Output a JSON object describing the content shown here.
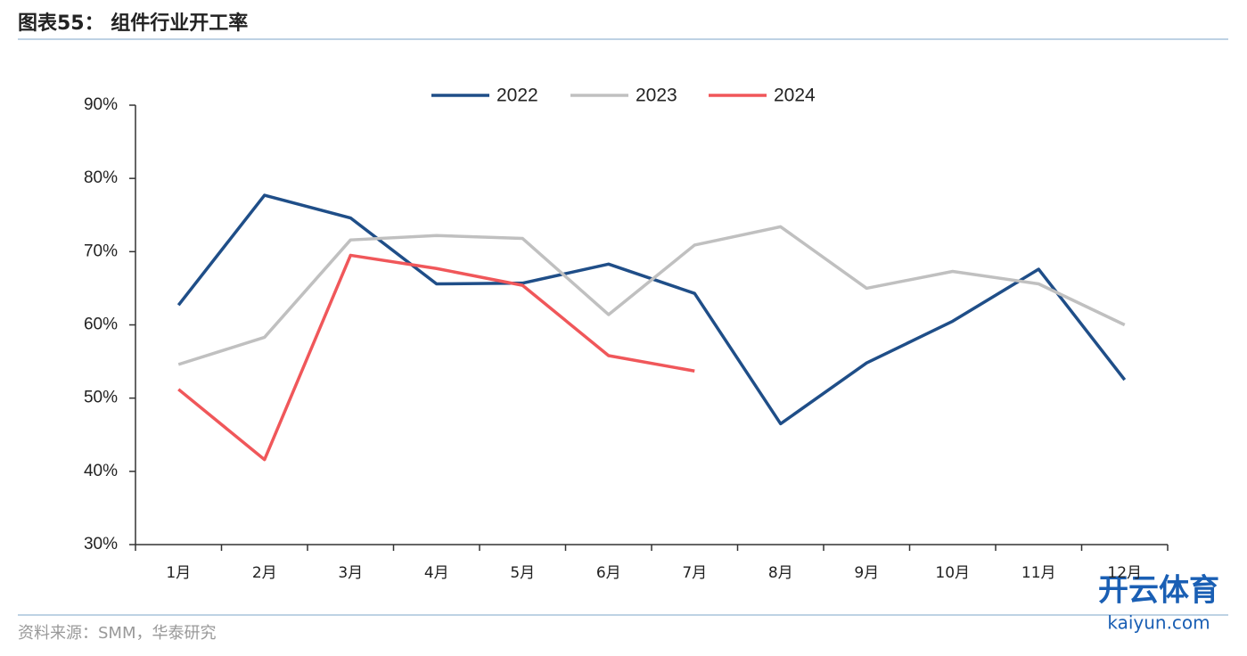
{
  "chart_data": {
    "type": "line",
    "title": "图表55： 组件行业开工率",
    "source": "资料来源：SMM，华泰研究",
    "watermark": [
      "开云体育",
      "kaiyun.com"
    ],
    "categories": [
      "1月",
      "2月",
      "3月",
      "4月",
      "5月",
      "6月",
      "7月",
      "8月",
      "9月",
      "10月",
      "11月",
      "12月"
    ],
    "series": [
      {
        "name": "2022",
        "color": "#1f4e88",
        "values": [
          62.7,
          77.7,
          74.6,
          65.6,
          65.7,
          68.3,
          64.3,
          46.5,
          54.8,
          60.5,
          67.6,
          52.5
        ]
      },
      {
        "name": "2023",
        "color": "#c0c0c0",
        "values": [
          54.6,
          58.3,
          71.6,
          72.2,
          71.8,
          61.4,
          70.9,
          73.4,
          65.0,
          67.3,
          65.6,
          60.0
        ]
      },
      {
        "name": "2024",
        "color": "#f0575a",
        "values": [
          51.2,
          41.6,
          69.5,
          67.7,
          65.4,
          55.8,
          53.7,
          null,
          null,
          null,
          null,
          null
        ]
      }
    ],
    "ylim": [
      30,
      90
    ],
    "yticks": [
      {
        "value": 30,
        "label": "30%"
      },
      {
        "value": 40,
        "label": "40%"
      },
      {
        "value": 50,
        "label": "50%"
      },
      {
        "value": 60,
        "label": "60%"
      },
      {
        "value": 70,
        "label": "70%"
      },
      {
        "value": 80,
        "label": "80%"
      },
      {
        "value": 90,
        "label": "90%"
      }
    ],
    "grid": false,
    "legend": "top"
  }
}
